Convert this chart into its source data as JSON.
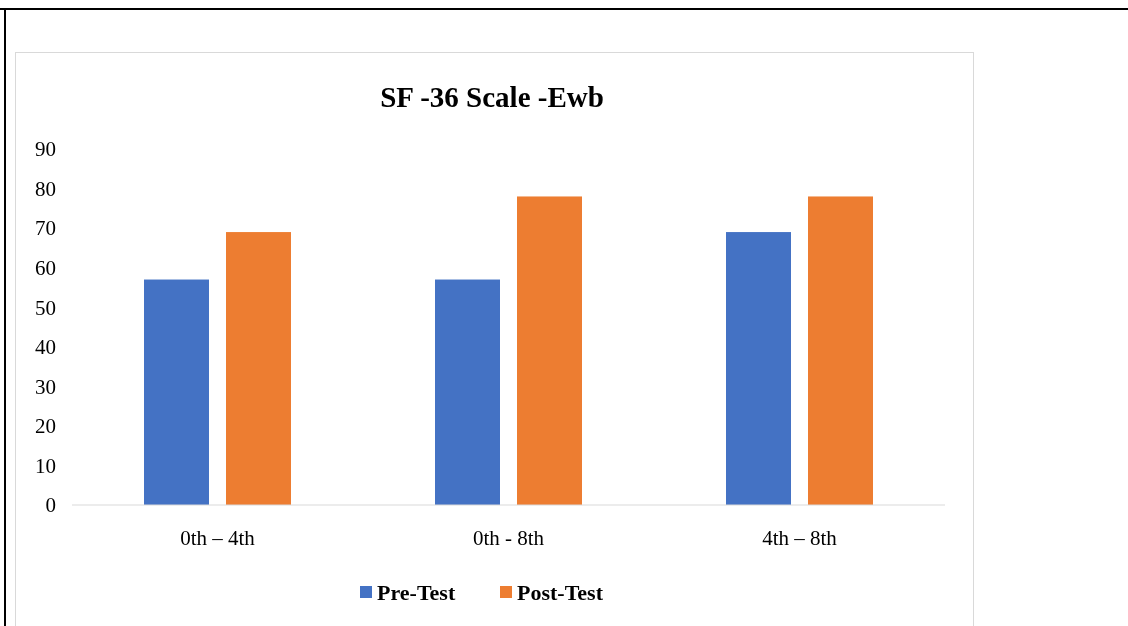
{
  "chart_data": {
    "type": "bar",
    "title": "SF -36 Scale -Ewb",
    "categories": [
      "0th – 4th",
      "0th - 8th",
      "4th – 8th"
    ],
    "series": [
      {
        "name": "Pre-Test",
        "color": "#4472c4",
        "values": [
          57,
          57,
          69
        ]
      },
      {
        "name": "Post-Test",
        "color": "#ed7d31",
        "values": [
          69,
          78,
          78
        ]
      }
    ],
    "ylim": [
      0,
      90
    ],
    "yticks": [
      0,
      10,
      20,
      30,
      40,
      50,
      60,
      70,
      80,
      90
    ],
    "grid": false,
    "legend": "bottom"
  }
}
